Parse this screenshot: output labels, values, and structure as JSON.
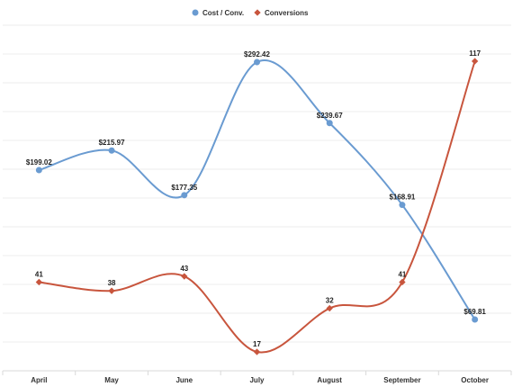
{
  "chart_data": {
    "type": "line",
    "title": "",
    "xlabel": "",
    "ylabel": "",
    "categories": [
      "April",
      "May",
      "June",
      "July",
      "August",
      "September",
      "October"
    ],
    "series": [
      {
        "name": "Cost / Conv.",
        "color": "#6a9bd1",
        "marker": "circle",
        "values": [
          199.02,
          215.97,
          177.35,
          292.42,
          239.67,
          168.91,
          69.81
        ],
        "labels": [
          "$199.02",
          "$215.97",
          "$177.35",
          "$292.42",
          "$239.67",
          "$168.91",
          "$69.81"
        ]
      },
      {
        "name": "Conversions",
        "color": "#c8553d",
        "marker": "diamond",
        "values": [
          41,
          38,
          43,
          17,
          32,
          41,
          117
        ],
        "labels": [
          "41",
          "38",
          "43",
          "17",
          "32",
          "41",
          "117"
        ]
      }
    ],
    "legend": {
      "position": "top-center"
    },
    "grid": true,
    "smooth": true
  }
}
